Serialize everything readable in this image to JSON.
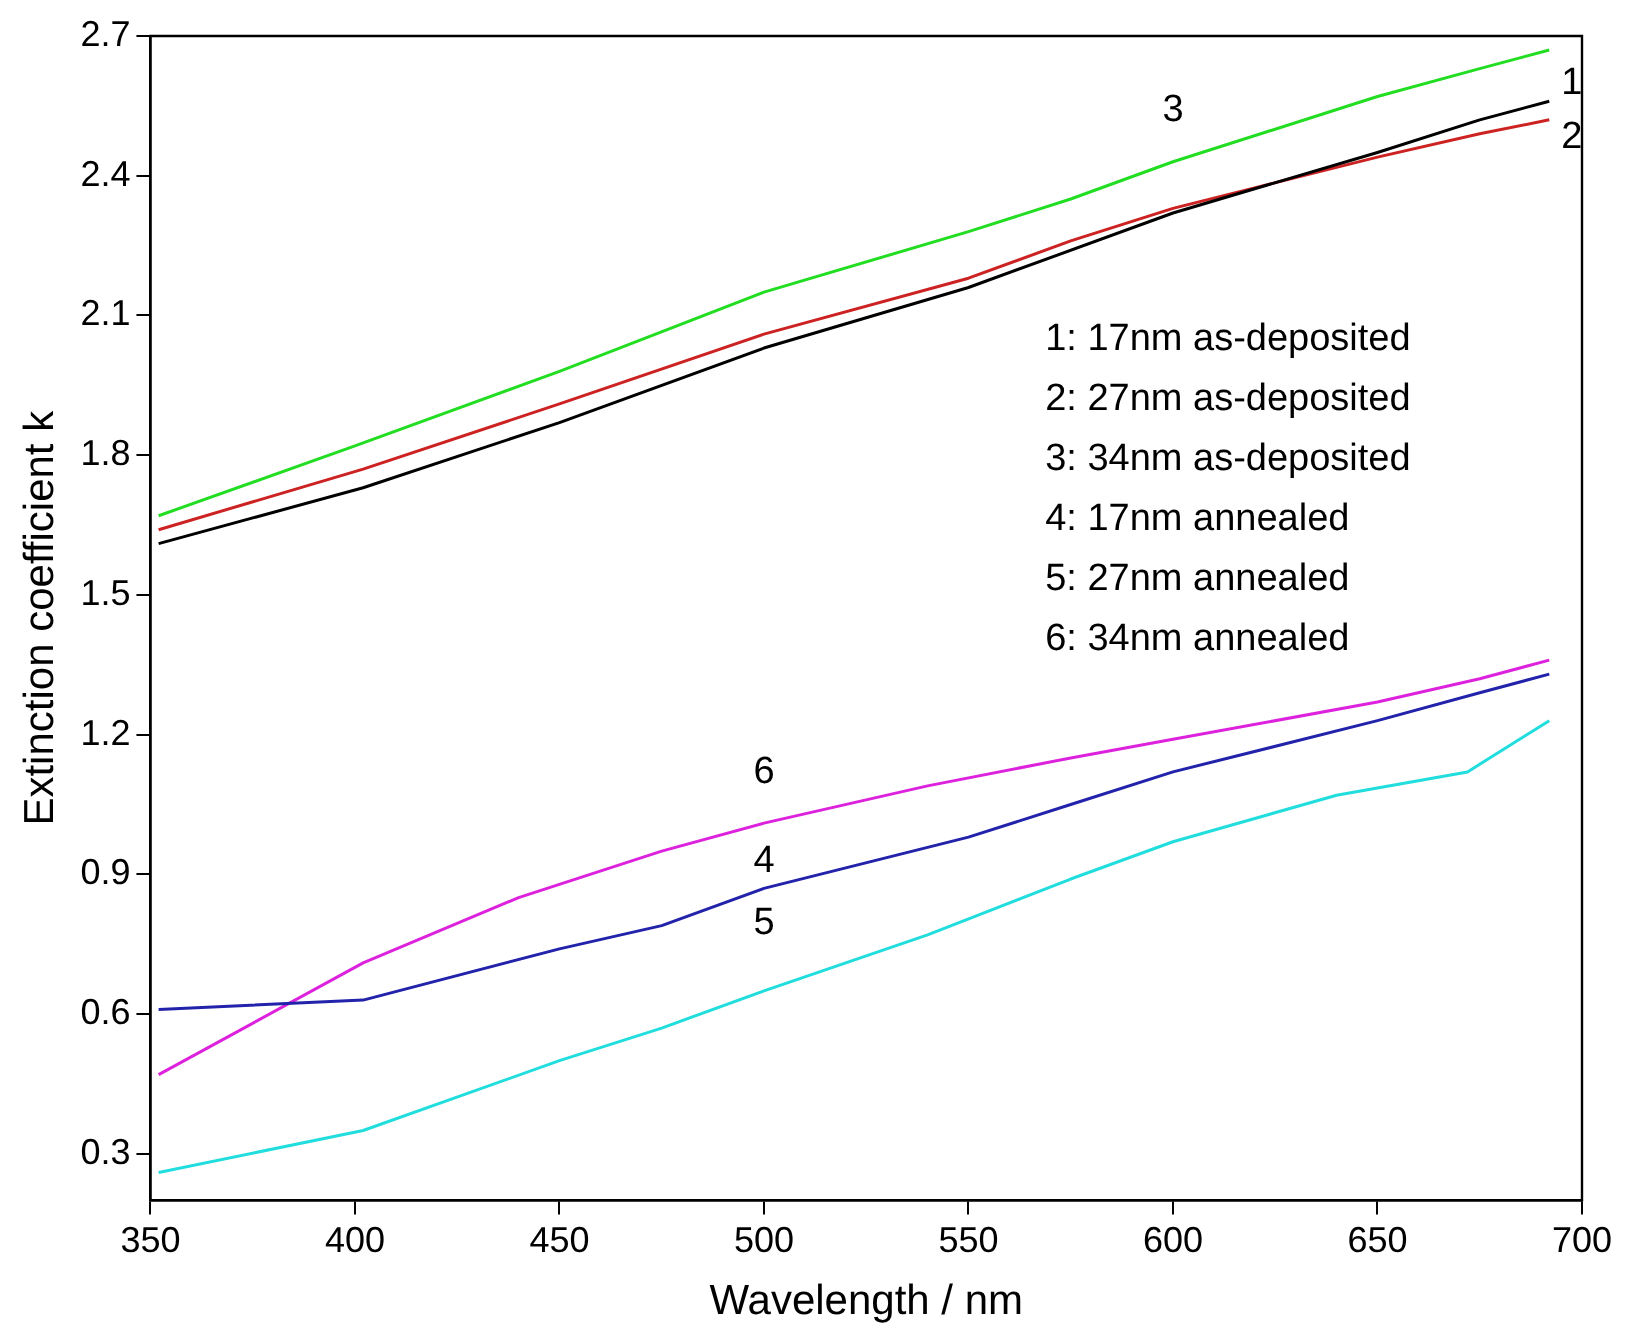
{
  "chart_data": {
    "type": "line",
    "xlabel": "Wavelength / nm",
    "ylabel": "Extinction coefficient k",
    "xlim": [
      350,
      700
    ],
    "ylim": [
      0.2,
      2.7
    ],
    "xticks": [
      350,
      400,
      450,
      500,
      550,
      600,
      650,
      700
    ],
    "yticks": [
      0.3,
      0.6,
      0.9,
      1.2,
      1.5,
      1.8,
      2.1,
      2.4,
      2.7
    ],
    "grid": false,
    "legend": false,
    "marker": "none",
    "line_style": "solid",
    "series": [
      {
        "color": "#000000",
        "x": [
          352,
          402,
          450,
          500,
          550,
          600,
          650,
          675,
          692
        ],
        "values": [
          1.61,
          1.73,
          1.87,
          2.03,
          2.16,
          2.32,
          2.45,
          2.52,
          2.56
        ]
      },
      {
        "color": "#cc2222",
        "x": [
          352,
          402,
          450,
          500,
          550,
          575,
          600,
          650,
          675,
          692
        ],
        "values": [
          1.64,
          1.77,
          1.91,
          2.06,
          2.18,
          2.26,
          2.33,
          2.44,
          2.49,
          2.52
        ]
      },
      {
        "color": "#22dd22",
        "x": [
          352,
          400,
          450,
          500,
          550,
          575,
          600,
          650,
          675,
          692
        ],
        "values": [
          1.67,
          1.82,
          1.98,
          2.15,
          2.28,
          2.35,
          2.43,
          2.57,
          2.63,
          2.67
        ]
      },
      {
        "color": "#2222aa",
        "x": [
          352,
          402,
          450,
          475,
          500,
          550,
          575,
          600,
          650,
          675,
          692
        ],
        "values": [
          0.61,
          0.63,
          0.74,
          0.79,
          0.87,
          0.98,
          1.05,
          1.12,
          1.23,
          1.29,
          1.33
        ]
      },
      {
        "color": "#22dddd",
        "x": [
          352,
          402,
          450,
          475,
          500,
          540,
          575,
          600,
          640,
          672,
          692
        ],
        "values": [
          0.26,
          0.35,
          0.5,
          0.57,
          0.65,
          0.77,
          0.89,
          0.97,
          1.07,
          1.12,
          1.23
        ]
      },
      {
        "color": "#dd22dd",
        "x": [
          352,
          402,
          440,
          475,
          500,
          540,
          575,
          600,
          650,
          675,
          692
        ],
        "values": [
          0.47,
          0.71,
          0.85,
          0.95,
          1.01,
          1.09,
          1.15,
          1.19,
          1.27,
          1.32,
          1.36
        ]
      }
    ],
    "annotations": [
      {
        "text": "1",
        "x": 692,
        "y": 2.56
      },
      {
        "text": "2",
        "x": 692,
        "y": 2.52
      },
      {
        "text": "3",
        "x": 600,
        "y": 2.43
      },
      {
        "text": "4",
        "x": 500,
        "y": 0.87
      },
      {
        "text": "5",
        "x": 500,
        "y": 0.65
      },
      {
        "text": "6",
        "x": 500,
        "y": 1.01
      },
      "1: 17nm as-deposited",
      "2: 27nm as-deposited",
      "3: 34nm as-deposited",
      "4: 17nm annealed",
      "5: 27nm annealed",
      "6: 34nm annealed"
    ]
  }
}
